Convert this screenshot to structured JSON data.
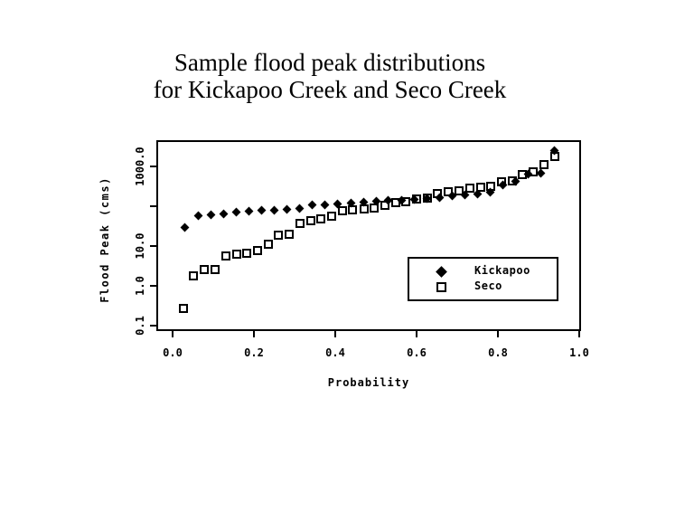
{
  "title": {
    "line1": "Sample flood peak distributions",
    "line2": "for Kickapoo Creek and Seco Creek"
  },
  "colors": {
    "foreground": "#000000",
    "background": "#ffffff"
  },
  "chart_data": {
    "type": "scatter",
    "title": "Sample flood peak distributions for Kickapoo Creek and Seco Creek",
    "xlabel": "Probability",
    "ylabel": "Flood Peak (cms)",
    "x_scale": "linear",
    "y_scale": "log",
    "xlim": [
      -0.04,
      1.004
    ],
    "ylim": [
      0.073,
      4600
    ],
    "grid": false,
    "x_ticks": [
      {
        "value": 0.0,
        "label": "0.0"
      },
      {
        "value": 0.2,
        "label": "0.2"
      },
      {
        "value": 0.4,
        "label": "0.4"
      },
      {
        "value": 0.6,
        "label": "0.6"
      },
      {
        "value": 0.8,
        "label": "0.8"
      },
      {
        "value": 1.0,
        "label": "1.0"
      }
    ],
    "y_ticks": [
      {
        "value": 1000,
        "label": "1000.0"
      },
      {
        "value": 100,
        "label": ""
      },
      {
        "value": 10,
        "label": "10.0"
      },
      {
        "value": 1,
        "label": "1.0"
      },
      {
        "value": 0.1,
        "label": "0.1"
      }
    ],
    "legend": {
      "position": "inside-lower-right",
      "entries": [
        {
          "label": "Kickapoo",
          "marker": "filled-diamond"
        },
        {
          "label": "Seco",
          "marker": "open-square"
        }
      ]
    },
    "series": [
      {
        "name": "Kickapoo",
        "marker": "filled-diamond",
        "points": [
          [
            0.031,
            30
          ],
          [
            0.063,
            59
          ],
          [
            0.094,
            62
          ],
          [
            0.125,
            63
          ],
          [
            0.156,
            72
          ],
          [
            0.188,
            74
          ],
          [
            0.219,
            78
          ],
          [
            0.25,
            80
          ],
          [
            0.281,
            84
          ],
          [
            0.313,
            90
          ],
          [
            0.344,
            107
          ],
          [
            0.375,
            111
          ],
          [
            0.406,
            115
          ],
          [
            0.438,
            122
          ],
          [
            0.469,
            128
          ],
          [
            0.5,
            132
          ],
          [
            0.531,
            139
          ],
          [
            0.563,
            144
          ],
          [
            0.594,
            150
          ],
          [
            0.625,
            160
          ],
          [
            0.656,
            166
          ],
          [
            0.688,
            182
          ],
          [
            0.719,
            195
          ],
          [
            0.75,
            200
          ],
          [
            0.781,
            225
          ],
          [
            0.813,
            350
          ],
          [
            0.844,
            430
          ],
          [
            0.875,
            650
          ],
          [
            0.906,
            660
          ],
          [
            0.938,
            2470
          ]
        ]
      },
      {
        "name": "Seco",
        "marker": "open-square",
        "points": [
          [
            0.026,
            0.27
          ],
          [
            0.052,
            1.8
          ],
          [
            0.078,
            2.5
          ],
          [
            0.104,
            2.6
          ],
          [
            0.13,
            5.7
          ],
          [
            0.157,
            6.4
          ],
          [
            0.183,
            6.6
          ],
          [
            0.209,
            7.8
          ],
          [
            0.235,
            11
          ],
          [
            0.261,
            19
          ],
          [
            0.287,
            20
          ],
          [
            0.313,
            37
          ],
          [
            0.339,
            43
          ],
          [
            0.365,
            47
          ],
          [
            0.391,
            56
          ],
          [
            0.417,
            76
          ],
          [
            0.443,
            80
          ],
          [
            0.47,
            86
          ],
          [
            0.496,
            90
          ],
          [
            0.522,
            107
          ],
          [
            0.548,
            125
          ],
          [
            0.574,
            132
          ],
          [
            0.6,
            153
          ],
          [
            0.626,
            158
          ],
          [
            0.652,
            204
          ],
          [
            0.678,
            228
          ],
          [
            0.704,
            245
          ],
          [
            0.73,
            280
          ],
          [
            0.757,
            306
          ],
          [
            0.783,
            310
          ],
          [
            0.809,
            420
          ],
          [
            0.835,
            434
          ],
          [
            0.861,
            620
          ],
          [
            0.887,
            740
          ],
          [
            0.913,
            1130
          ],
          [
            0.939,
            1810
          ]
        ]
      }
    ]
  }
}
